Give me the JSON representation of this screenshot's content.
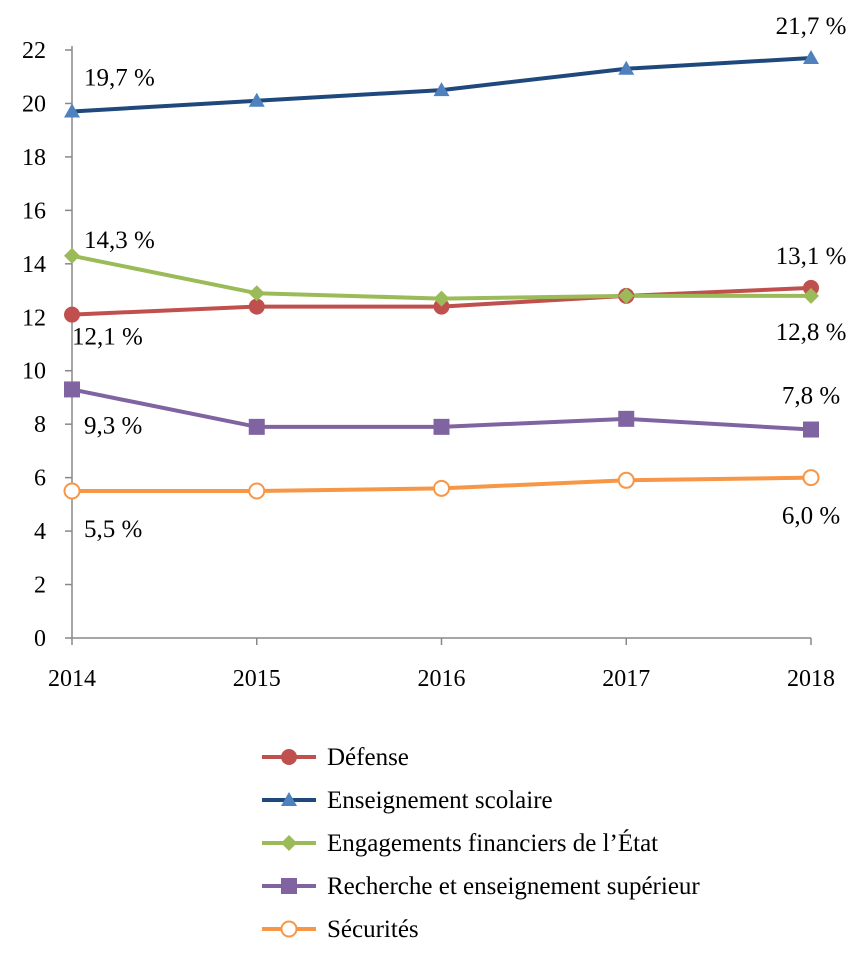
{
  "chart_data": {
    "type": "line",
    "x": [
      "2014",
      "2015",
      "2016",
      "2017",
      "2018"
    ],
    "ylim": [
      0,
      22
    ],
    "yticks": [
      0,
      2,
      4,
      6,
      8,
      10,
      12,
      14,
      16,
      18,
      20,
      22
    ],
    "grid": false,
    "legend_position": "bottom",
    "series": [
      {
        "name": "Défense",
        "values": [
          12.1,
          12.4,
          12.4,
          12.8,
          13.1
        ],
        "color": "#C0504D",
        "marker": "circle",
        "first_label": "12,1 %",
        "last_label": "13,1 %"
      },
      {
        "name": "Enseignement scolaire",
        "values": [
          19.7,
          20.1,
          20.5,
          21.3,
          21.7
        ],
        "color": "#1F497D",
        "marker_color": "#4F81BD",
        "marker": "triangle",
        "first_label": "19,7 %",
        "last_label": "21,7 %"
      },
      {
        "name": "Engagements financiers de l’État",
        "values": [
          14.3,
          12.9,
          12.7,
          12.8,
          12.8
        ],
        "color": "#9BBB59",
        "marker": "diamond",
        "first_label": "14,3 %",
        "last_label": "12,8 %"
      },
      {
        "name": "Recherche et enseignement supérieur",
        "values": [
          9.3,
          7.9,
          7.9,
          8.2,
          7.8
        ],
        "color": "#8064A2",
        "marker": "square",
        "first_label": "9,3 %",
        "last_label": "7,8 %"
      },
      {
        "name": "Sécurités",
        "values": [
          5.5,
          5.5,
          5.6,
          5.9,
          6.0
        ],
        "color": "#F79646",
        "marker": "open-circle",
        "first_label": "5,5 %",
        "last_label": "6,0 %"
      }
    ]
  }
}
